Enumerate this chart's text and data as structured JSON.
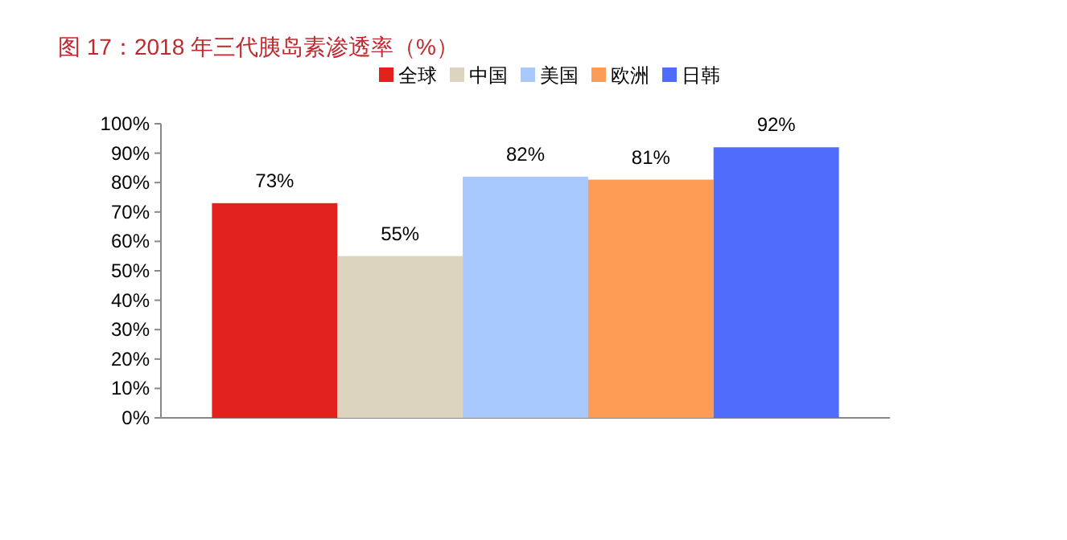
{
  "chart_data": {
    "type": "bar",
    "title": "图 17：2018 年三代胰岛素渗透率（%）",
    "categories": [
      null
    ],
    "series": [
      {
        "name": "全球",
        "color": "#e3211c",
        "values": [
          73
        ],
        "value_labels": [
          "73%"
        ]
      },
      {
        "name": "中国",
        "color": "#ddd4bf",
        "values": [
          55
        ],
        "value_labels": [
          "55%"
        ]
      },
      {
        "name": "美国",
        "color": "#a9c8fc",
        "values": [
          82
        ],
        "value_labels": [
          "82%"
        ]
      },
      {
        "name": "欧洲",
        "color": "#fe9c56",
        "values": [
          81
        ],
        "value_labels": [
          "81%"
        ]
      },
      {
        "name": "日韩",
        "color": "#4f6cfd",
        "values": [
          92
        ],
        "value_labels": [
          "92%"
        ]
      }
    ],
    "ylim": [
      0,
      100
    ],
    "yticks": [
      {
        "value": 0,
        "label": "0%"
      },
      {
        "value": 10,
        "label": "10%"
      },
      {
        "value": 20,
        "label": "20%"
      },
      {
        "value": 30,
        "label": "30%"
      },
      {
        "value": 40,
        "label": "40%"
      },
      {
        "value": 50,
        "label": "50%"
      },
      {
        "value": 60,
        "label": "60%"
      },
      {
        "value": 70,
        "label": "70%"
      },
      {
        "value": 80,
        "label": "80%"
      },
      {
        "value": 90,
        "label": "90%"
      },
      {
        "value": 100,
        "label": "100%"
      }
    ],
    "legend": "top",
    "grid": false
  }
}
